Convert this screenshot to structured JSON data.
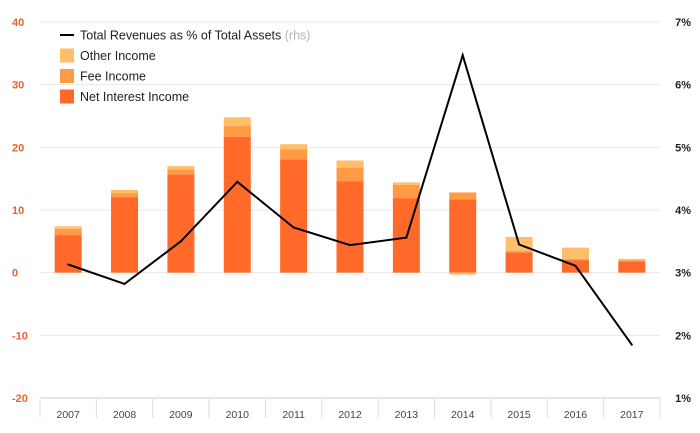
{
  "chart_data": {
    "type": "bar+line",
    "categories": [
      "2007",
      "2008",
      "2009",
      "2010",
      "2011",
      "2012",
      "2013",
      "2014",
      "2015",
      "2016",
      "2017"
    ],
    "series": [
      {
        "name": "Net Interest Income",
        "type": "bar",
        "stack": "income",
        "color": "#ff6a2b",
        "values": [
          6.0,
          12.0,
          15.7,
          21.7,
          18.1,
          14.6,
          11.9,
          11.7,
          3.2,
          2.0,
          1.8
        ]
      },
      {
        "name": "Fee Income",
        "type": "bar",
        "stack": "income",
        "color": "#ff9a45",
        "values": [
          1.0,
          0.7,
          0.8,
          1.7,
          1.6,
          2.1,
          2.1,
          1.1,
          0.3,
          0.2,
          0.2
        ]
      },
      {
        "name": "Other Income",
        "type": "bar",
        "stack": "income",
        "color": "#ffbe6a",
        "values": [
          0.4,
          0.5,
          0.5,
          1.4,
          0.8,
          1.2,
          0.4,
          -0.3,
          2.2,
          1.8,
          0.2
        ]
      },
      {
        "name": "Total Revenues as % of Total Assets",
        "type": "line",
        "axis": "right",
        "color": "#000000",
        "values": [
          3.13,
          2.82,
          3.5,
          4.45,
          3.72,
          3.44,
          3.56,
          6.47,
          3.45,
          3.11,
          1.85
        ]
      }
    ],
    "legend": [
      {
        "label": "Total Revenues as % of Total Assets",
        "suffix": "(rhs)",
        "kind": "line",
        "color": "#000000"
      },
      {
        "label": "Other Income",
        "kind": "box",
        "color": "#ffbe6a"
      },
      {
        "label": "Fee Income",
        "kind": "box",
        "color": "#ff9a45"
      },
      {
        "label": "Net Interest Income",
        "kind": "box",
        "color": "#ff6a2b"
      }
    ],
    "legend_position": "top-left",
    "y_left": {
      "min": -20,
      "max": 40,
      "ticks": [
        "40",
        "30",
        "20",
        "10",
        "0",
        "-10",
        "-20"
      ]
    },
    "y_right": {
      "min": 1,
      "max": 7,
      "ticks": [
        "7%",
        "6%",
        "5%",
        "4%",
        "3%",
        "2%",
        "1%"
      ]
    },
    "grid": true,
    "title": "",
    "xlabel": "",
    "ylabel": ""
  }
}
